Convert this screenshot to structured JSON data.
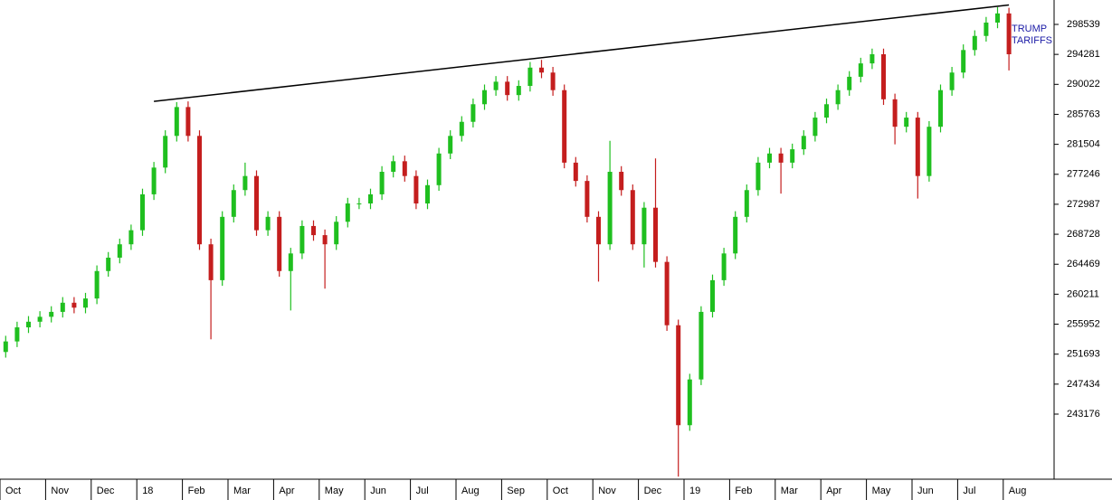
{
  "chart_data": {
    "type": "candlestick",
    "x_labels": [
      "Oct",
      "Nov",
      "Dec",
      "18",
      "Feb",
      "Mar",
      "Apr",
      "May",
      "Jun",
      "Jul",
      "Aug",
      "Sep",
      "Oct",
      "Nov",
      "Dec",
      "19",
      "Feb",
      "Mar",
      "Apr",
      "May",
      "Jun",
      "Jul",
      "Aug"
    ],
    "open": [
      252000,
      253500,
      255500,
      256300,
      257000,
      257700,
      259000,
      258300,
      259600,
      263500,
      265400,
      267300,
      269300,
      274400,
      278200,
      282700,
      286800,
      282700,
      267300,
      262200,
      271200,
      275000,
      277000,
      269300,
      271200,
      263500,
      266000,
      269900,
      268600,
      267300,
      270500,
      273100,
      273100,
      274400,
      277600,
      279100,
      277000,
      273100,
      275700,
      280200,
      282700,
      284700,
      287200,
      289200,
      290400,
      288500,
      289800,
      292400,
      291700,
      289200,
      278900,
      276300,
      271200,
      267300,
      277600,
      275000,
      267300,
      272500,
      264800,
      255800,
      241600,
      248100,
      257700,
      262200,
      266000,
      271200,
      275000,
      278900,
      280200,
      278900,
      280800,
      282700,
      285300,
      287200,
      289200,
      291100,
      293000,
      294300,
      287900,
      284000,
      285300,
      277000,
      284000,
      289200,
      291700,
      294900,
      296900,
      298800,
      300100
    ],
    "high": [
      254300,
      256300,
      257100,
      257800,
      258500,
      259800,
      259800,
      260400,
      264300,
      266200,
      268100,
      270100,
      275200,
      279000,
      283500,
      287500,
      287600,
      283500,
      268100,
      272000,
      275800,
      278900,
      277800,
      272000,
      272000,
      266800,
      270700,
      270700,
      269400,
      271300,
      273900,
      273900,
      275200,
      278400,
      279900,
      279900,
      277800,
      276500,
      281000,
      283500,
      285500,
      288000,
      290000,
      291200,
      291200,
      290600,
      293200,
      293500,
      292500,
      290000,
      279700,
      277100,
      272000,
      282000,
      278400,
      275800,
      273300,
      279500,
      265600,
      256600,
      248900,
      258500,
      263000,
      266800,
      272000,
      275800,
      279700,
      281000,
      281000,
      281600,
      283500,
      286100,
      288000,
      290000,
      291900,
      293800,
      295100,
      295100,
      288700,
      286100,
      286100,
      284800,
      290000,
      292500,
      295700,
      297700,
      299600,
      301000,
      300900
    ],
    "low": [
      251200,
      252700,
      254700,
      255500,
      256200,
      256900,
      257500,
      257500,
      258800,
      262700,
      264600,
      266500,
      268500,
      273600,
      277400,
      281900,
      281900,
      266500,
      253800,
      261400,
      270400,
      274200,
      268500,
      268500,
      262700,
      257900,
      265200,
      267800,
      261000,
      266500,
      269700,
      272300,
      272300,
      273600,
      276800,
      276200,
      272300,
      272300,
      274900,
      279400,
      281900,
      283900,
      286400,
      288400,
      287700,
      287700,
      289000,
      290900,
      288400,
      278100,
      275500,
      270400,
      262000,
      266500,
      274200,
      266500,
      264000,
      264000,
      255000,
      234300,
      240800,
      247300,
      256900,
      261400,
      265200,
      270400,
      274200,
      278100,
      274500,
      278100,
      280000,
      281900,
      284500,
      286400,
      288400,
      290300,
      292200,
      287100,
      281500,
      283200,
      273800,
      276200,
      283200,
      288400,
      290900,
      294100,
      296100,
      298000,
      292000
    ],
    "close": [
      253500,
      255500,
      256300,
      257000,
      257700,
      259000,
      258300,
      259600,
      263500,
      265400,
      267300,
      269300,
      274400,
      278200,
      282700,
      286800,
      282700,
      267300,
      262200,
      271200,
      275000,
      277000,
      269300,
      271200,
      263500,
      266000,
      269900,
      268600,
      267300,
      270500,
      273100,
      273100,
      274400,
      277600,
      279100,
      277000,
      273100,
      275700,
      280200,
      282700,
      284700,
      287200,
      289200,
      290400,
      288500,
      289800,
      292400,
      291700,
      289200,
      278900,
      276300,
      271200,
      267300,
      277600,
      275000,
      267300,
      272500,
      264800,
      255800,
      241600,
      248100,
      257700,
      262200,
      266000,
      271200,
      275000,
      278900,
      280200,
      278900,
      280800,
      282700,
      285300,
      287200,
      289200,
      291100,
      293000,
      294300,
      287900,
      284000,
      285300,
      277000,
      284000,
      289200,
      291700,
      294900,
      296900,
      298800,
      300100,
      294300
    ],
    "up_color": "#1fbf1f",
    "down_color": "#c41e1e",
    "ylim": [
      233927,
      302007
    ],
    "yticks": [
      243176,
      247434,
      251693,
      255952,
      260211,
      264469,
      268728,
      272987,
      277246,
      281504,
      285763,
      290022,
      294281,
      298539
    ],
    "trend_line": {
      "candle_indices": [
        13,
        88
      ],
      "values": [
        287600,
        301300
      ],
      "color": "#000000"
    },
    "annotation": [
      "TRUMP",
      "TARIFFS"
    ]
  }
}
